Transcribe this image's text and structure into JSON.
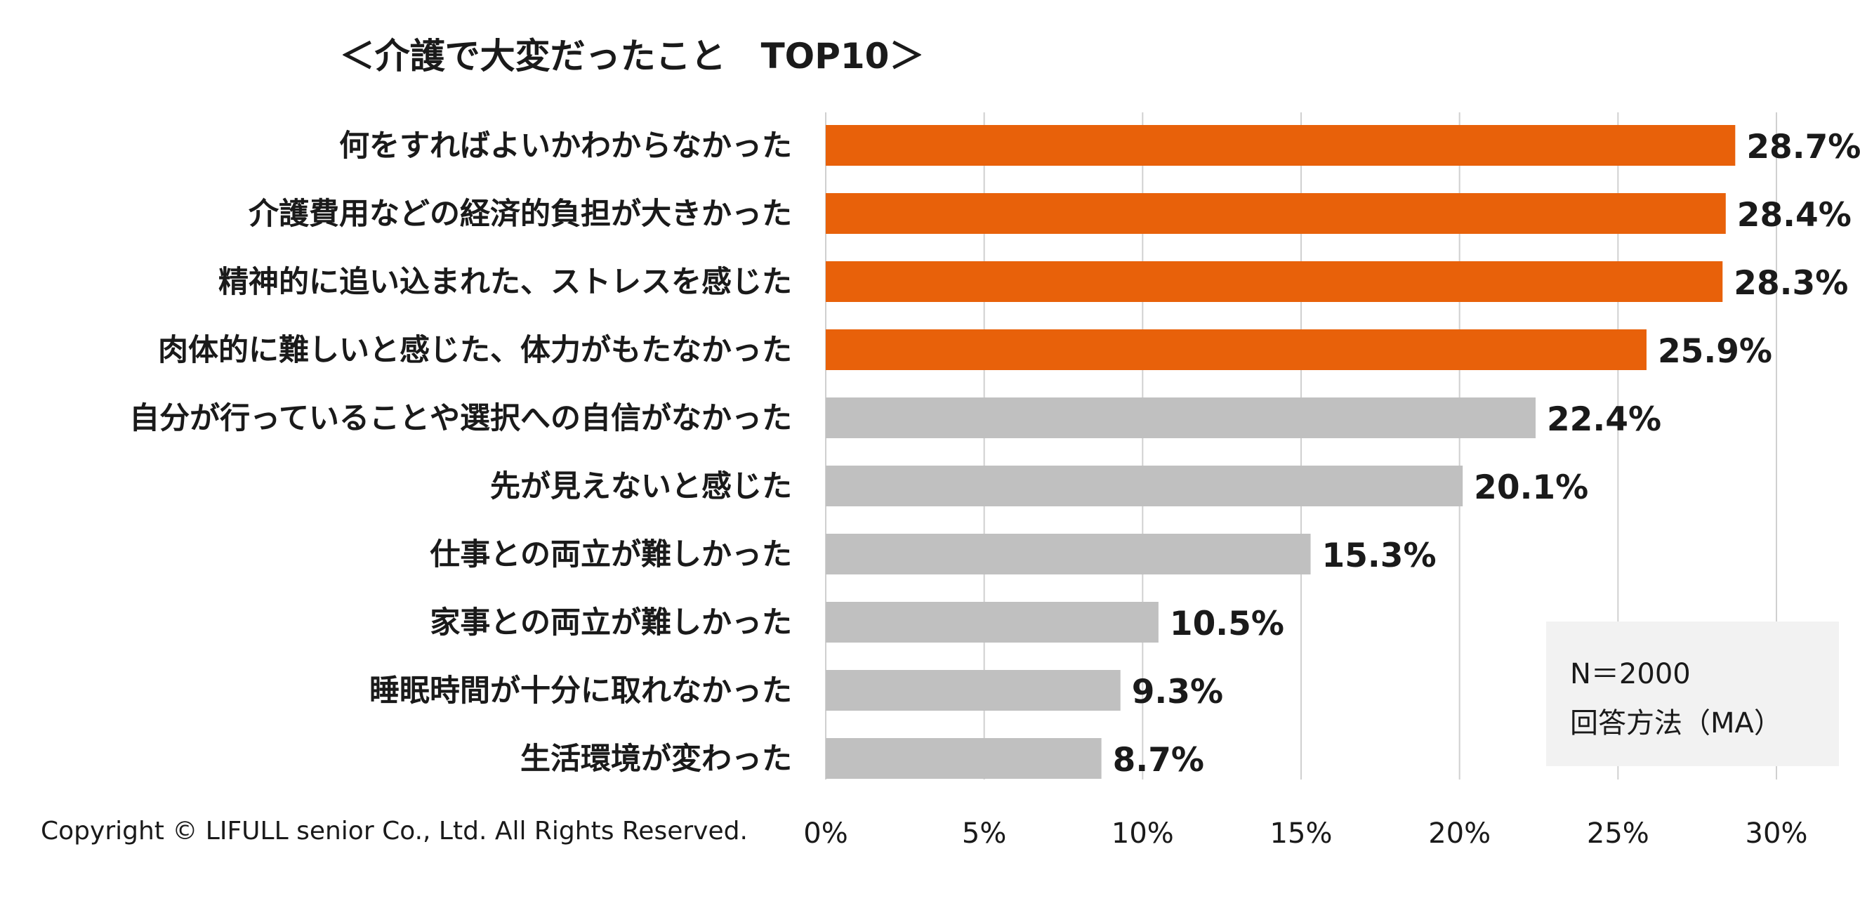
{
  "chart_data": {
    "type": "bar",
    "orientation": "horizontal",
    "title": "＜介護で大変だったこと　TOP10＞",
    "categories": [
      "何をすればよいかわからなかった",
      "介護費用などの経済的負担が大きかった",
      "精神的に追い込まれた、ストレスを感じた",
      "肉体的に難しいと感じた、体力がもたなかった",
      "自分が行っていることや選択への自信がなかった",
      "先が見えないと感じた",
      "仕事との両立が難しかった",
      "家事との両立が難しかった",
      "睡眠時間が十分に取れなかった",
      "生活環境が変わった"
    ],
    "values": [
      28.7,
      28.4,
      28.3,
      25.9,
      22.4,
      20.1,
      15.3,
      10.5,
      9.3,
      8.7
    ],
    "value_labels": [
      "28.7%",
      "28.4%",
      "28.3%",
      "25.9%",
      "22.4%",
      "20.1%",
      "15.3%",
      "10.5%",
      "9.3%",
      "8.7%"
    ],
    "highlight_count": 4,
    "xlim": [
      0,
      30
    ],
    "xticks": [
      0,
      5,
      10,
      15,
      20,
      25,
      30
    ],
    "xtick_labels": [
      "0%",
      "5%",
      "10%",
      "15%",
      "20%",
      "25%",
      "30%"
    ],
    "xlabel": "",
    "ylabel": "",
    "grid": "vertical"
  },
  "colors": {
    "highlight": "#E8610A",
    "normal": "#C0C0C0"
  },
  "note": {
    "sample": "N＝2000",
    "method": "回答方法（MA）"
  },
  "copyright": "Copyright © LIFULL senior Co., Ltd. All Rights Reserved."
}
